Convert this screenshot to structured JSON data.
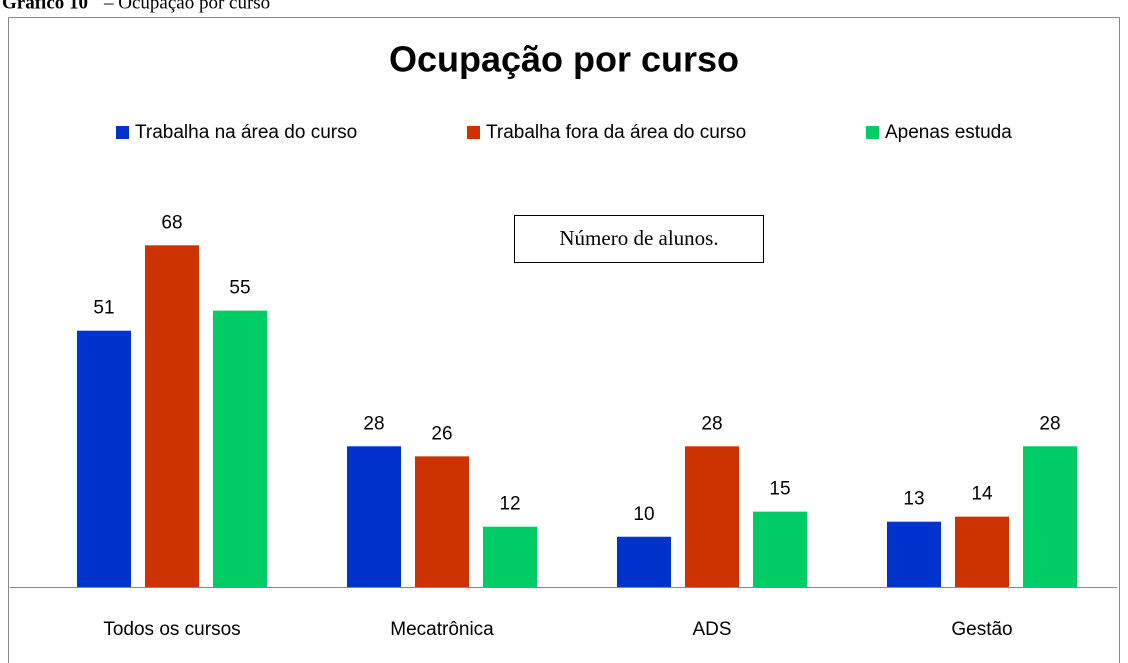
{
  "caption": {
    "label": "Gráfico 10",
    "text": "– Ocupação por curso"
  },
  "chart_data": {
    "type": "bar",
    "title": "Ocupação por curso",
    "annotation": "Número de alunos.",
    "categories": [
      "Todos os cursos",
      "Mecatrônica",
      "ADS",
      "Gestão"
    ],
    "series": [
      {
        "name": "Trabalha na área do curso",
        "color": "#0033cc",
        "values": [
          51,
          28,
          10,
          13
        ]
      },
      {
        "name": "Trabalha fora da área do curso",
        "color": "#cc3300",
        "values": [
          68,
          26,
          28,
          14
        ]
      },
      {
        "name": "Apenas estuda",
        "color": "#00cc66",
        "values": [
          55,
          12,
          15,
          28
        ]
      }
    ],
    "ylim": [
      0,
      80
    ],
    "legend": "top"
  }
}
